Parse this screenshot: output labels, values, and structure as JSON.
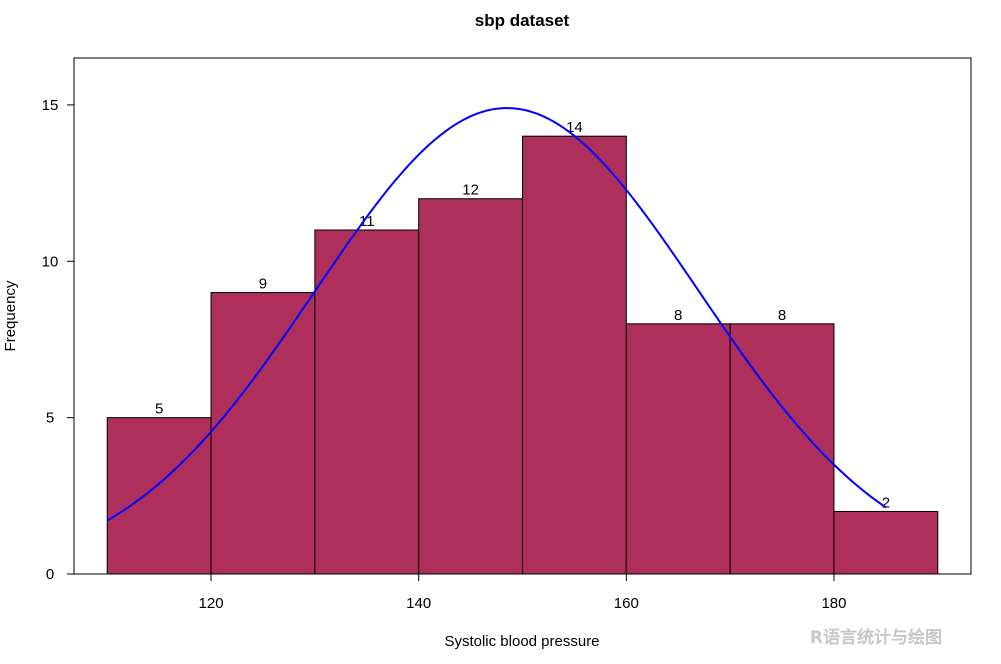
{
  "chart_data": {
    "type": "histogram",
    "title": "sbp dataset",
    "xlabel": "Systolic blood pressure",
    "ylabel": "Frequency",
    "bins": [
      {
        "start": 110,
        "end": 120,
        "count": 5
      },
      {
        "start": 120,
        "end": 130,
        "count": 9
      },
      {
        "start": 130,
        "end": 140,
        "count": 11
      },
      {
        "start": 140,
        "end": 150,
        "count": 12
      },
      {
        "start": 150,
        "end": 160,
        "count": 14
      },
      {
        "start": 160,
        "end": 170,
        "count": 8
      },
      {
        "start": 170,
        "end": 180,
        "count": 8
      },
      {
        "start": 180,
        "end": 190,
        "count": 2
      }
    ],
    "bar_labels": [
      "5",
      "9",
      "11",
      "12",
      "14",
      "8",
      "8",
      "2"
    ],
    "xticks": [
      120,
      140,
      160,
      180
    ],
    "xtick_labels": [
      "120",
      "140",
      "160",
      "180"
    ],
    "yticks": [
      0,
      5,
      10,
      15
    ],
    "ytick_labels": [
      "0",
      "5",
      "10",
      "15"
    ],
    "xlim": [
      106.8,
      193.2
    ],
    "ylim": [
      0,
      16.5
    ],
    "density_curve": {
      "type": "normal",
      "mean": 148.5,
      "sd": 18.5,
      "peak": 14.9,
      "x_range": [
        110,
        185
      ]
    },
    "colors": {
      "bar_fill": "#AE2F5C",
      "bar_border": "#000000",
      "curve": "#0000FF"
    },
    "grid": false,
    "legend": "none"
  },
  "watermark": "R语言统计与绘图"
}
